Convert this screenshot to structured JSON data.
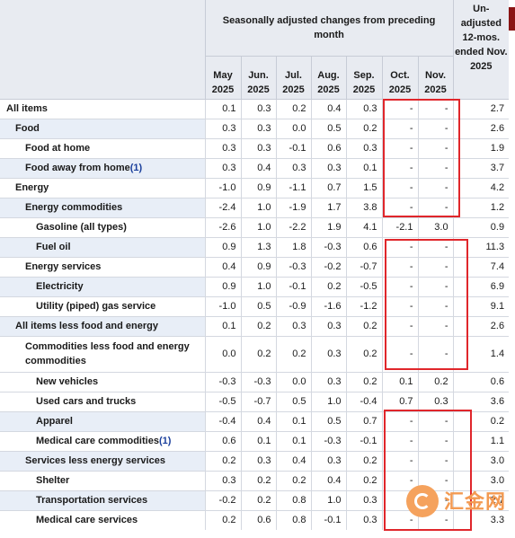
{
  "header": {
    "span_title": "Seasonally adjusted changes from preceding month",
    "unadjusted_title": "Un-adjusted 12-mos. ended Nov. 2025",
    "months": [
      {
        "m": "May",
        "y": "2025"
      },
      {
        "m": "Jun.",
        "y": "2025"
      },
      {
        "m": "Jul.",
        "y": "2025"
      },
      {
        "m": "Aug.",
        "y": "2025"
      },
      {
        "m": "Sep.",
        "y": "2025"
      },
      {
        "m": "Oct.",
        "y": "2025"
      },
      {
        "m": "Nov.",
        "y": "2025"
      }
    ]
  },
  "rows": [
    {
      "label": "All items",
      "fn": "",
      "v": [
        "0.1",
        "0.3",
        "0.2",
        "0.4",
        "0.3",
        "-",
        "-",
        "2.7"
      ]
    },
    {
      "label": "Food",
      "fn": "",
      "v": [
        "0.3",
        "0.3",
        "0.0",
        "0.5",
        "0.2",
        "-",
        "-",
        "2.6"
      ]
    },
    {
      "label": "Food at home",
      "fn": "",
      "v": [
        "0.3",
        "0.3",
        "-0.1",
        "0.6",
        "0.3",
        "-",
        "-",
        "1.9"
      ]
    },
    {
      "label": "Food away from home",
      "fn": "(1)",
      "v": [
        "0.3",
        "0.4",
        "0.3",
        "0.3",
        "0.1",
        "-",
        "-",
        "3.7"
      ]
    },
    {
      "label": "Energy",
      "fn": "",
      "v": [
        "-1.0",
        "0.9",
        "-1.1",
        "0.7",
        "1.5",
        "-",
        "-",
        "4.2"
      ]
    },
    {
      "label": "Energy commodities",
      "fn": "",
      "v": [
        "-2.4",
        "1.0",
        "-1.9",
        "1.7",
        "3.8",
        "-",
        "-",
        "1.2"
      ]
    },
    {
      "label": "Gasoline (all types)",
      "fn": "",
      "v": [
        "-2.6",
        "1.0",
        "-2.2",
        "1.9",
        "4.1",
        "-2.1",
        "3.0",
        "0.9"
      ]
    },
    {
      "label": "Fuel oil",
      "fn": "",
      "v": [
        "0.9",
        "1.3",
        "1.8",
        "-0.3",
        "0.6",
        "-",
        "-",
        "11.3"
      ]
    },
    {
      "label": "Energy services",
      "fn": "",
      "v": [
        "0.4",
        "0.9",
        "-0.3",
        "-0.2",
        "-0.7",
        "-",
        "-",
        "7.4"
      ]
    },
    {
      "label": "Electricity",
      "fn": "",
      "v": [
        "0.9",
        "1.0",
        "-0.1",
        "0.2",
        "-0.5",
        "-",
        "-",
        "6.9"
      ]
    },
    {
      "label": "Utility (piped) gas service",
      "fn": "",
      "v": [
        "-1.0",
        "0.5",
        "-0.9",
        "-1.6",
        "-1.2",
        "-",
        "-",
        "9.1"
      ]
    },
    {
      "label": "All items less food and energy",
      "fn": "",
      "v": [
        "0.1",
        "0.2",
        "0.3",
        "0.3",
        "0.2",
        "-",
        "-",
        "2.6"
      ]
    },
    {
      "label": "Commodities less food and energy commodities",
      "fn": "",
      "v": [
        "0.0",
        "0.2",
        "0.2",
        "0.3",
        "0.2",
        "-",
        "-",
        "1.4"
      ]
    },
    {
      "label": "New vehicles",
      "fn": "",
      "v": [
        "-0.3",
        "-0.3",
        "0.0",
        "0.3",
        "0.2",
        "0.1",
        "0.2",
        "0.6"
      ]
    },
    {
      "label": "Used cars and trucks",
      "fn": "",
      "v": [
        "-0.5",
        "-0.7",
        "0.5",
        "1.0",
        "-0.4",
        "0.7",
        "0.3",
        "3.6"
      ]
    },
    {
      "label": "Apparel",
      "fn": "",
      "v": [
        "-0.4",
        "0.4",
        "0.1",
        "0.5",
        "0.7",
        "-",
        "-",
        "0.2"
      ]
    },
    {
      "label": "Medical care commodities",
      "fn": "(1)",
      "v": [
        "0.6",
        "0.1",
        "0.1",
        "-0.3",
        "-0.1",
        "-",
        "-",
        "1.1"
      ]
    },
    {
      "label": "Services less energy services",
      "fn": "",
      "v": [
        "0.2",
        "0.3",
        "0.4",
        "0.3",
        "0.2",
        "-",
        "-",
        "3.0"
      ]
    },
    {
      "label": "Shelter",
      "fn": "",
      "v": [
        "0.3",
        "0.2",
        "0.2",
        "0.4",
        "0.2",
        "-",
        "-",
        "3.0"
      ]
    },
    {
      "label": "Transportation services",
      "fn": "",
      "v": [
        "-0.2",
        "0.2",
        "0.8",
        "1.0",
        "0.3",
        "-",
        "-",
        "2.7"
      ]
    },
    {
      "label": "Medical care services",
      "fn": "",
      "v": [
        "0.2",
        "0.6",
        "0.8",
        "-0.1",
        "0.3",
        "-",
        "-",
        "3.3"
      ]
    }
  ],
  "watermark": {
    "text": "汇金网",
    "icon": "huijin-logo-icon"
  },
  "colors": {
    "highlight": "#e0262b",
    "header_bg": "#e8ebf1",
    "row_shade": "#e8eef7"
  }
}
